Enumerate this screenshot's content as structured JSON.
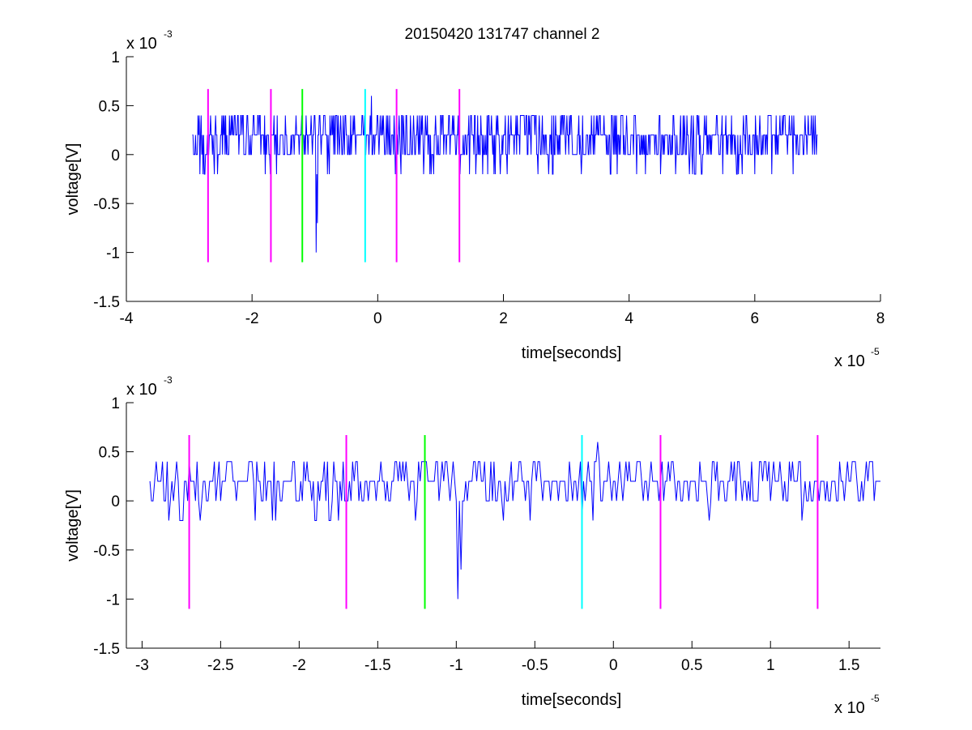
{
  "figure_title": "20150420 131747 channel 2",
  "chart_data": [
    {
      "type": "line",
      "title": "20150420 131747 channel 2",
      "xlabel": "time[seconds]",
      "ylabel": "voltage[V]",
      "x_scale_text": "x 10",
      "x_scale_exp": "-5",
      "y_scale_text": "x 10",
      "y_scale_exp": "-3",
      "x_scale_factor": 1e-05,
      "y_scale_factor": 0.001,
      "xlim": [
        -4,
        8
      ],
      "ylim": [
        -1.5,
        1
      ],
      "xticks": [
        -4,
        -2,
        0,
        2,
        4,
        6,
        8
      ],
      "xtick_labels": [
        "-4",
        "-2",
        "0",
        "2",
        "4",
        "6",
        "8"
      ],
      "yticks": [
        -1.5,
        -1,
        -0.5,
        0,
        0.5,
        1
      ],
      "ytick_labels": [
        "-1.5",
        "-1",
        "-0.5",
        "0",
        "0.5",
        "1"
      ],
      "grid": false,
      "line_color": "#0000ff",
      "signal": {
        "x_start": -2.95,
        "x_end": 7.0,
        "dt": 0.01,
        "baseline_level": 0.2,
        "spikes": [
          {
            "x": -0.98,
            "y": -1.0
          },
          {
            "x": -0.96,
            "y": -0.7
          },
          {
            "x": -0.1,
            "y": 0.6
          }
        ]
      },
      "markers": [
        {
          "x": -2.7,
          "color": "#ff00ff",
          "ymin": -1.1,
          "ymax": 0.67
        },
        {
          "x": -1.7,
          "color": "#ff00ff",
          "ymin": -1.1,
          "ymax": 0.67
        },
        {
          "x": -1.2,
          "color": "#00ff00",
          "ymin": -1.1,
          "ymax": 0.67
        },
        {
          "x": -0.2,
          "color": "#00ffff",
          "ymin": -1.1,
          "ymax": 0.67
        },
        {
          "x": 0.3,
          "color": "#ff00ff",
          "ymin": -1.1,
          "ymax": 0.67
        },
        {
          "x": 1.3,
          "color": "#ff00ff",
          "ymin": -1.1,
          "ymax": 0.67
        }
      ]
    },
    {
      "type": "line",
      "title": "",
      "xlabel": "time[seconds]",
      "ylabel": "voltage[V]",
      "x_scale_text": "x 10",
      "x_scale_exp": "-5",
      "y_scale_text": "x 10",
      "y_scale_exp": "-3",
      "x_scale_factor": 1e-05,
      "y_scale_factor": 0.001,
      "xlim": [
        -3.1,
        1.7
      ],
      "ylim": [
        -1.5,
        1
      ],
      "xticks": [
        -3,
        -2.5,
        -2,
        -1.5,
        -1,
        -0.5,
        0,
        0.5,
        1,
        1.5
      ],
      "xtick_labels": [
        "-3",
        "-2.5",
        "-2",
        "-1.5",
        "-1",
        "-0.5",
        "0",
        "0.5",
        "1",
        "1.5"
      ],
      "yticks": [
        -1.5,
        -1,
        -0.5,
        0,
        0.5,
        1
      ],
      "ytick_labels": [
        "-1.5",
        "-1",
        "-0.5",
        "0",
        "0.5",
        "1"
      ],
      "grid": false,
      "line_color": "#0000ff",
      "signal": {
        "x_start": -2.95,
        "x_end": 1.7,
        "dt": 0.01,
        "baseline_level": 0.2,
        "spikes": [
          {
            "x": -0.99,
            "y": -1.0
          },
          {
            "x": -0.97,
            "y": -0.7
          },
          {
            "x": -0.1,
            "y": 0.6
          }
        ]
      },
      "markers": [
        {
          "x": -2.7,
          "color": "#ff00ff",
          "ymin": -1.1,
          "ymax": 0.67
        },
        {
          "x": -1.7,
          "color": "#ff00ff",
          "ymin": -1.1,
          "ymax": 0.67
        },
        {
          "x": -1.2,
          "color": "#00ff00",
          "ymin": -1.1,
          "ymax": 0.67
        },
        {
          "x": -0.2,
          "color": "#00ffff",
          "ymin": -1.1,
          "ymax": 0.67
        },
        {
          "x": 0.3,
          "color": "#ff00ff",
          "ymin": -1.1,
          "ymax": 0.67
        },
        {
          "x": 1.3,
          "color": "#ff00ff",
          "ymin": -1.1,
          "ymax": 0.67
        }
      ]
    }
  ]
}
